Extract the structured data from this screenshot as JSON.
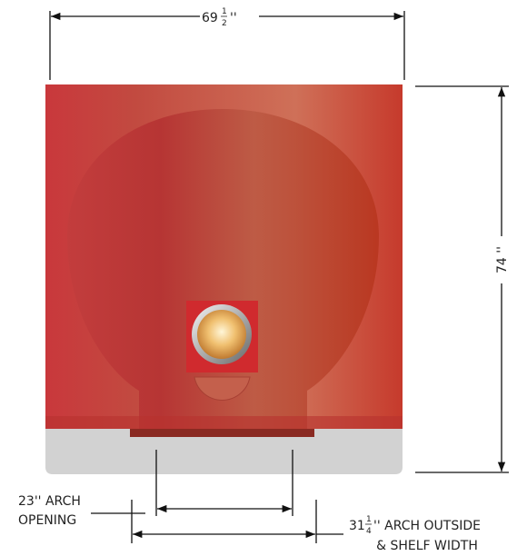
{
  "dimensions": {
    "width": {
      "whole": "69",
      "numerator": "1",
      "denominator": "2",
      "unit": "''"
    },
    "height": {
      "label": "74 ''"
    },
    "arch_opening": {
      "line1": "23'' ARCH",
      "line2": "OPENING"
    },
    "arch_outside": {
      "whole": "31",
      "numerator": "1",
      "denominator": "4",
      "line1_rest": "'' ARCH OUTSIDE",
      "line2": "& SHELF WIDTH"
    }
  }
}
